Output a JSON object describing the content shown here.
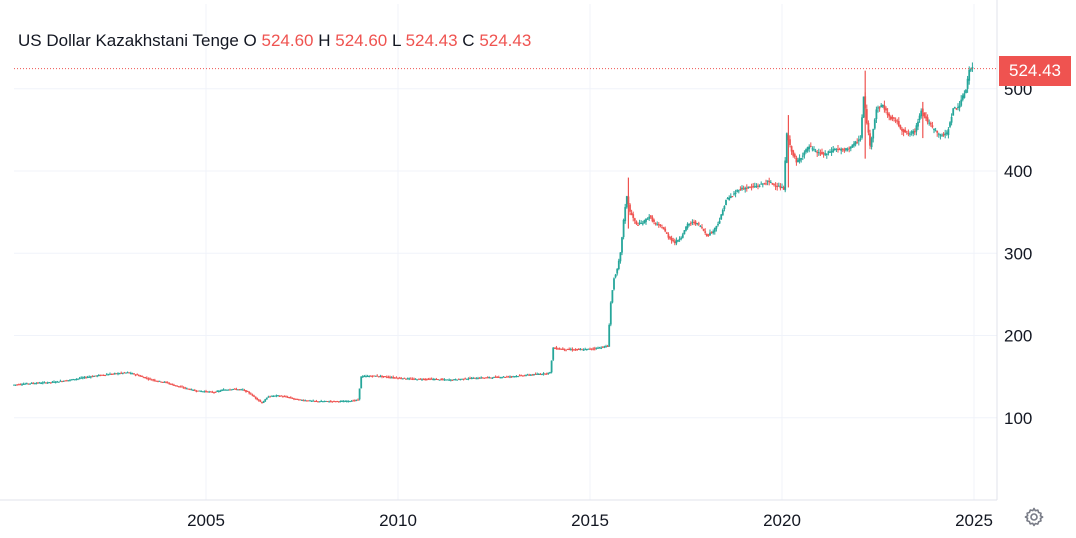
{
  "legend": {
    "symbol": "US Dollar Kazakhstani Tenge",
    "o_label": "O",
    "o_value": "524.60",
    "h_label": "H",
    "h_value": "524.60",
    "l_label": "L",
    "l_value": "524.43",
    "c_label": "C",
    "c_value": "524.43"
  },
  "price_badge": "524.43",
  "icons": {
    "settings": "gear-icon"
  },
  "colors": {
    "up": "#26a69a",
    "down": "#ef5350",
    "grid": "#f0f3fa",
    "axis_text": "#131722",
    "last_price_line": "#ef5350"
  },
  "chart_data": {
    "type": "candlestick",
    "title": "US Dollar Kazakhstani Tenge",
    "xlabel": "",
    "ylabel": "",
    "x_ticks": [
      "2005",
      "2010",
      "2015",
      "2020",
      "2025"
    ],
    "y_ticks": [
      "100",
      "200",
      "300",
      "400",
      "500"
    ],
    "ylim": [
      0,
      600
    ],
    "xlim": [
      "2000-01",
      "2025-06"
    ],
    "grid": true,
    "last_price": 524.43,
    "series": [
      {
        "interval": "month",
        "points": [
          {
            "x": "2000-01",
            "y": 140
          },
          {
            "x": "2000-07",
            "y": 142
          },
          {
            "x": "2001-01",
            "y": 143
          },
          {
            "x": "2001-07",
            "y": 146
          },
          {
            "x": "2002-01",
            "y": 150
          },
          {
            "x": "2002-07",
            "y": 153
          },
          {
            "x": "2003-01",
            "y": 155
          },
          {
            "x": "2003-04",
            "y": 152
          },
          {
            "x": "2003-07",
            "y": 148
          },
          {
            "x": "2003-10",
            "y": 145
          },
          {
            "x": "2004-01",
            "y": 143
          },
          {
            "x": "2004-04",
            "y": 139
          },
          {
            "x": "2004-07",
            "y": 136
          },
          {
            "x": "2004-10",
            "y": 133
          },
          {
            "x": "2005-01",
            "y": 132
          },
          {
            "x": "2005-04",
            "y": 131
          },
          {
            "x": "2005-07",
            "y": 134
          },
          {
            "x": "2005-10",
            "y": 135
          },
          {
            "x": "2006-01",
            "y": 134
          },
          {
            "x": "2006-03",
            "y": 130
          },
          {
            "x": "2006-05",
            "y": 124
          },
          {
            "x": "2006-07",
            "y": 118
          },
          {
            "x": "2006-09",
            "y": 126
          },
          {
            "x": "2006-12",
            "y": 127
          },
          {
            "x": "2007-03",
            "y": 125
          },
          {
            "x": "2007-06",
            "y": 122
          },
          {
            "x": "2007-09",
            "y": 121
          },
          {
            "x": "2007-12",
            "y": 120
          },
          {
            "x": "2008-03",
            "y": 120
          },
          {
            "x": "2008-06",
            "y": 120
          },
          {
            "x": "2008-09",
            "y": 120
          },
          {
            "x": "2008-12",
            "y": 121
          },
          {
            "x": "2009-01",
            "y": 122
          },
          {
            "x": "2009-02",
            "y": 150
          },
          {
            "x": "2009-06",
            "y": 151
          },
          {
            "x": "2009-12",
            "y": 149
          },
          {
            "x": "2010-06",
            "y": 147
          },
          {
            "x": "2010-12",
            "y": 147
          },
          {
            "x": "2011-06",
            "y": 146
          },
          {
            "x": "2011-12",
            "y": 148
          },
          {
            "x": "2012-06",
            "y": 149
          },
          {
            "x": "2012-12",
            "y": 150
          },
          {
            "x": "2013-06",
            "y": 152
          },
          {
            "x": "2013-12",
            "y": 154
          },
          {
            "x": "2014-01",
            "y": 155
          },
          {
            "x": "2014-02",
            "y": 185
          },
          {
            "x": "2014-06",
            "y": 183
          },
          {
            "x": "2014-12",
            "y": 183
          },
          {
            "x": "2015-04",
            "y": 185
          },
          {
            "x": "2015-07",
            "y": 187
          },
          {
            "x": "2015-08",
            "y": 240
          },
          {
            "x": "2015-09",
            "y": 270
          },
          {
            "x": "2015-10",
            "y": 280
          },
          {
            "x": "2015-11",
            "y": 300
          },
          {
            "x": "2015-12",
            "y": 340
          },
          {
            "x": "2016-01",
            "y": 370
          },
          {
            "x": "2016-02",
            "y": 350
          },
          {
            "x": "2016-04",
            "y": 335
          },
          {
            "x": "2016-06",
            "y": 337
          },
          {
            "x": "2016-08",
            "y": 345
          },
          {
            "x": "2016-10",
            "y": 335
          },
          {
            "x": "2016-12",
            "y": 332
          },
          {
            "x": "2017-02",
            "y": 320
          },
          {
            "x": "2017-04",
            "y": 313
          },
          {
            "x": "2017-06",
            "y": 320
          },
          {
            "x": "2017-08",
            "y": 335
          },
          {
            "x": "2017-10",
            "y": 338
          },
          {
            "x": "2017-12",
            "y": 333
          },
          {
            "x": "2018-02",
            "y": 322
          },
          {
            "x": "2018-04",
            "y": 327
          },
          {
            "x": "2018-06",
            "y": 340
          },
          {
            "x": "2018-08",
            "y": 365
          },
          {
            "x": "2018-10",
            "y": 370
          },
          {
            "x": "2018-12",
            "y": 378
          },
          {
            "x": "2019-03",
            "y": 380
          },
          {
            "x": "2019-06",
            "y": 382
          },
          {
            "x": "2019-09",
            "y": 387
          },
          {
            "x": "2019-12",
            "y": 382
          },
          {
            "x": "2020-02",
            "y": 378
          },
          {
            "x": "2020-03",
            "y": 445
          },
          {
            "x": "2020-04",
            "y": 430
          },
          {
            "x": "2020-06",
            "y": 410
          },
          {
            "x": "2020-08",
            "y": 420
          },
          {
            "x": "2020-10",
            "y": 430
          },
          {
            "x": "2020-12",
            "y": 423
          },
          {
            "x": "2021-03",
            "y": 420
          },
          {
            "x": "2021-06",
            "y": 427
          },
          {
            "x": "2021-09",
            "y": 425
          },
          {
            "x": "2021-12",
            "y": 432
          },
          {
            "x": "2022-02",
            "y": 440
          },
          {
            "x": "2022-03",
            "y": 490
          },
          {
            "x": "2022-05",
            "y": 430
          },
          {
            "x": "2022-07",
            "y": 475
          },
          {
            "x": "2022-09",
            "y": 480
          },
          {
            "x": "2022-11",
            "y": 465
          },
          {
            "x": "2023-01",
            "y": 462
          },
          {
            "x": "2023-03",
            "y": 450
          },
          {
            "x": "2023-05",
            "y": 445
          },
          {
            "x": "2023-07",
            "y": 448
          },
          {
            "x": "2023-09",
            "y": 475
          },
          {
            "x": "2023-11",
            "y": 460
          },
          {
            "x": "2024-01",
            "y": 450
          },
          {
            "x": "2024-03",
            "y": 443
          },
          {
            "x": "2024-05",
            "y": 445
          },
          {
            "x": "2024-07",
            "y": 475
          },
          {
            "x": "2024-09",
            "y": 480
          },
          {
            "x": "2024-10",
            "y": 490
          },
          {
            "x": "2024-11",
            "y": 500
          },
          {
            "x": "2024-12",
            "y": 523
          },
          {
            "x": "2025-01",
            "y": 524.43
          }
        ]
      }
    ]
  }
}
